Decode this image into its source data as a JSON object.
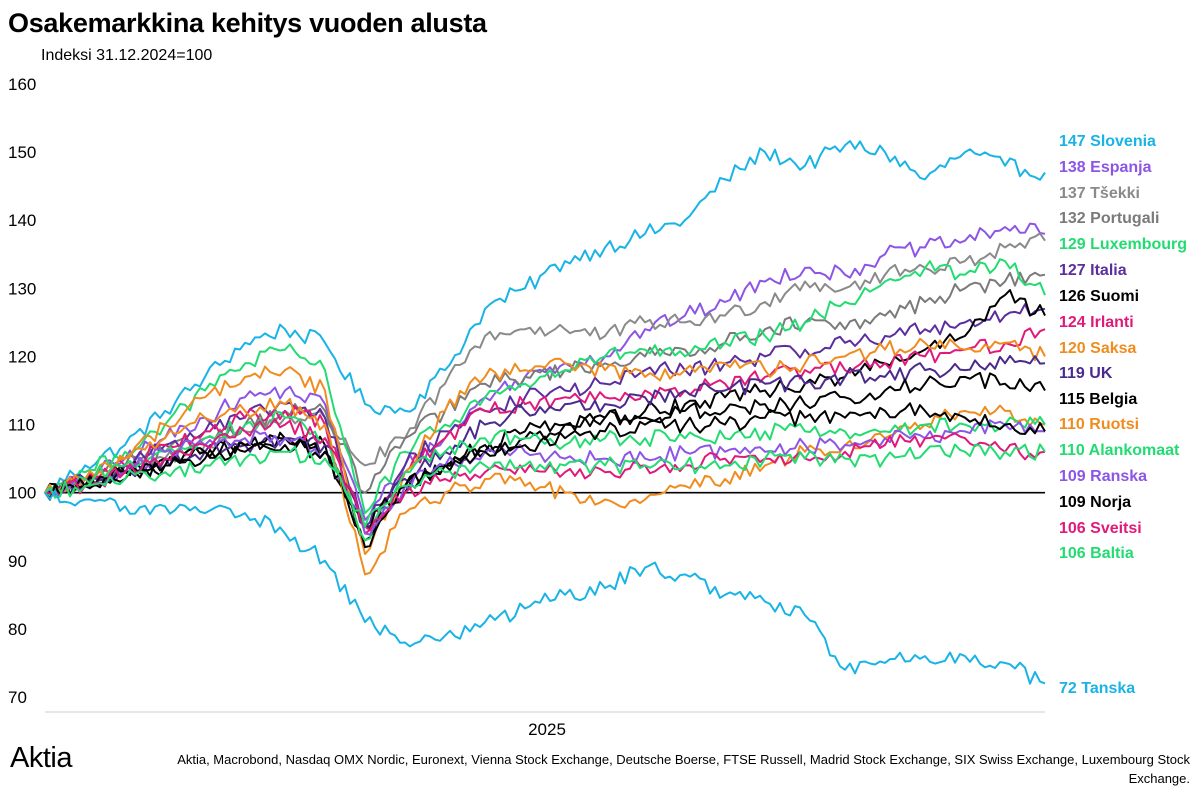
{
  "brand": "Aktia",
  "source": "Aktia, Macrobond, Nasdaq OMX Nordic, Euronext, Vienna Stock Exchange, Deutsche Boerse, FTSE Russell, Madrid Stock Exchange, SIX Swiss Exchange, Luxembourg Stock Exchange.",
  "chart_data": {
    "type": "line",
    "title": "Osakemarkkina kehitys vuoden alusta",
    "subtitle": "Indeksi 31.12.2024=100",
    "xlabel": "",
    "ylabel": "",
    "x_tick_labels": [
      "2025"
    ],
    "x_range": [
      "2024-12-31",
      "2025-09-30"
    ],
    "ylim": [
      70,
      160
    ],
    "y_ticks": [
      70,
      80,
      90,
      100,
      110,
      120,
      130,
      140,
      150,
      160
    ],
    "reference_line": 100,
    "grid": false,
    "legend": "end-labels-right",
    "series": [
      {
        "name": "Slovenia",
        "end_label": "147 Slovenia",
        "color": "#1ab3e6",
        "values": [
          100,
          104,
          107,
          112,
          117,
          122,
          124,
          122,
          113,
          112,
          118,
          127,
          130,
          134,
          136,
          138,
          140,
          146,
          150,
          148,
          151,
          150,
          146,
          150,
          148,
          147
        ]
      },
      {
        "name": "Espanja",
        "end_label": "138 Espanja",
        "color": "#8c55e6",
        "values": [
          100,
          102,
          105,
          108,
          111,
          114,
          115,
          113,
          96,
          104,
          108,
          114,
          117,
          119,
          120,
          124,
          126,
          128,
          131,
          133,
          132,
          135,
          136,
          137,
          139,
          138
        ]
      },
      {
        "name": "Tšekki",
        "end_label": "137 Tšekki",
        "color": "#8a8a8a",
        "values": [
          100,
          101,
          103,
          105,
          107,
          109,
          111,
          111,
          104,
          108,
          116,
          123,
          124,
          124,
          123,
          125,
          125,
          126,
          128,
          131,
          130,
          132,
          133,
          134,
          136,
          137
        ]
      },
      {
        "name": "Portugali",
        "end_label": "132 Portugali",
        "color": "#7a7a7a",
        "values": [
          100,
          102,
          104,
          106,
          108,
          110,
          112,
          112,
          100,
          108,
          112,
          116,
          117,
          118,
          119,
          120,
          121,
          122,
          124,
          125,
          124,
          126,
          128,
          130,
          131,
          132
        ]
      },
      {
        "name": "Luxembourg",
        "end_label": "129 Luxembourg",
        "color": "#22dc72",
        "values": [
          100,
          103,
          106,
          110,
          115,
          119,
          121,
          118,
          97,
          106,
          110,
          114,
          116,
          118,
          120,
          121,
          120,
          122,
          123,
          125,
          128,
          131,
          133,
          132,
          134,
          129
        ]
      },
      {
        "name": "Italia",
        "end_label": "127 Italia",
        "color": "#5b2d9e",
        "values": [
          100,
          102,
          104,
          107,
          109,
          111,
          113,
          111,
          95,
          104,
          109,
          112,
          114,
          115,
          116,
          118,
          118,
          119,
          120,
          121,
          122,
          123,
          124,
          125,
          126,
          127
        ]
      },
      {
        "name": "Suomi",
        "end_label": "126 Suomi",
        "color": "#000000",
        "values": [
          100,
          101,
          103,
          105,
          106,
          107,
          108,
          107,
          93,
          101,
          104,
          106,
          108,
          110,
          111,
          112,
          113,
          114,
          115,
          116,
          117,
          119,
          121,
          123,
          129,
          126
        ]
      },
      {
        "name": "Irlanti",
        "end_label": "124 Irlanti",
        "color": "#e0197a",
        "values": [
          100,
          102,
          104,
          107,
          109,
          111,
          112,
          110,
          94,
          103,
          108,
          112,
          113,
          114,
          114,
          115,
          115,
          116,
          117,
          118,
          118,
          119,
          120,
          121,
          122,
          124
        ]
      },
      {
        "name": "Saksa",
        "end_label": "120 Saksa",
        "color": "#f08c1e",
        "values": [
          100,
          102,
          105,
          110,
          114,
          117,
          118,
          115,
          91,
          103,
          112,
          117,
          118,
          119,
          118,
          117,
          118,
          119,
          118,
          119,
          120,
          121,
          122,
          121,
          122,
          120
        ]
      },
      {
        "name": "UK",
        "end_label": "119 UK",
        "color": "#4a2a8c",
        "values": [
          100,
          101,
          103,
          105,
          106,
          107,
          108,
          107,
          95,
          102,
          106,
          110,
          112,
          113,
          113,
          114,
          115,
          115,
          116,
          116,
          117,
          117,
          118,
          118,
          119,
          119
        ]
      },
      {
        "name": "Belgia",
        "end_label": "115 Belgia",
        "color": "#000000",
        "values": [
          100,
          101,
          103,
          104,
          106,
          107,
          108,
          106,
          92,
          100,
          104,
          107,
          109,
          110,
          111,
          111,
          112,
          112,
          113,
          113,
          114,
          115,
          116,
          117,
          116,
          115
        ]
      },
      {
        "name": "Ruotsi",
        "end_label": "110 Ruotsi",
        "color": "#f08c1e",
        "values": [
          100,
          102,
          105,
          108,
          111,
          112,
          113,
          110,
          88,
          97,
          100,
          102,
          101,
          100,
          99,
          99,
          101,
          102,
          104,
          106,
          107,
          108,
          110,
          112,
          112,
          110
        ]
      },
      {
        "name": "Alankomaat",
        "end_label": "110 Alankomaat",
        "color": "#22dc72",
        "values": [
          100,
          102,
          104,
          106,
          108,
          110,
          111,
          108,
          93,
          103,
          106,
          108,
          108,
          107,
          108,
          108,
          108,
          108,
          109,
          109,
          109,
          109,
          110,
          110,
          110,
          110
        ]
      },
      {
        "name": "Ranska",
        "end_label": "109 Ranska",
        "color": "#8c55e6",
        "values": [
          100,
          101,
          103,
          106,
          107,
          108,
          108,
          106,
          94,
          101,
          104,
          106,
          106,
          105,
          105,
          105,
          106,
          106,
          106,
          107,
          107,
          108,
          108,
          109,
          110,
          109
        ]
      },
      {
        "name": "Norja",
        "end_label": "109 Norja",
        "color": "#000000",
        "values": [
          100,
          101,
          102,
          104,
          105,
          106,
          107,
          106,
          95,
          101,
          104,
          106,
          107,
          108,
          109,
          110,
          110,
          110,
          111,
          111,
          111,
          112,
          112,
          111,
          110,
          109
        ]
      },
      {
        "name": "Sveitsi",
        "end_label": "106 Sveitsi",
        "color": "#e0197a",
        "values": [
          100,
          101,
          103,
          105,
          107,
          109,
          110,
          108,
          95,
          100,
          102,
          103,
          103,
          103,
          103,
          104,
          104,
          105,
          105,
          105,
          106,
          107,
          108,
          108,
          106,
          106
        ]
      },
      {
        "name": "Baltia",
        "end_label": "106 Baltia",
        "color": "#22dc72",
        "values": [
          100,
          101,
          102,
          103,
          104,
          105,
          106,
          105,
          95,
          101,
          103,
          104,
          104,
          104,
          104,
          104,
          104,
          104,
          105,
          105,
          105,
          105,
          106,
          106,
          106,
          106
        ]
      },
      {
        "name": "Tanska",
        "end_label": "72 Tanska",
        "color": "#1ab3e6",
        "values": [
          100,
          99,
          98,
          98,
          97,
          97,
          94,
          90,
          81,
          78,
          79,
          81,
          83,
          85,
          86,
          89,
          88,
          85,
          84,
          82,
          74,
          75,
          76,
          76,
          75,
          72
        ]
      }
    ]
  }
}
